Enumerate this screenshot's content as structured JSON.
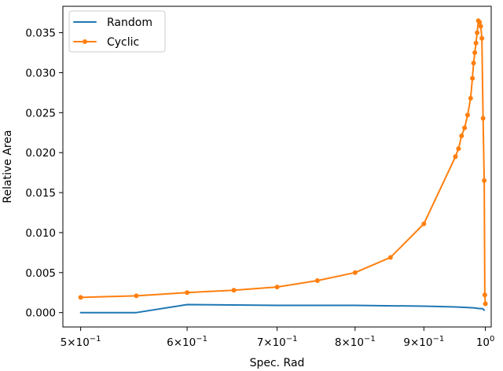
{
  "chart_data": {
    "type": "line",
    "title": "",
    "xlabel": "Spec. Rad",
    "ylabel": "Relative Area",
    "xscale": "log",
    "xlim": [
      0.485,
      1.01
    ],
    "ylim": [
      -0.0018,
      0.0383
    ],
    "grid": false,
    "legend_position": "top-left",
    "x_ticks": [
      {
        "value": 0.5,
        "base": "5×10",
        "exp": "−1"
      },
      {
        "value": 0.6,
        "base": "6×10",
        "exp": "−1"
      },
      {
        "value": 0.7,
        "base": "7×10",
        "exp": "−1"
      },
      {
        "value": 0.8,
        "base": "8×10",
        "exp": "−1"
      },
      {
        "value": 0.9,
        "base": "9×10",
        "exp": "−1"
      },
      {
        "value": 1.0,
        "base": "10",
        "exp": "0"
      }
    ],
    "y_ticks": [
      {
        "value": 0.0,
        "label": "0.000"
      },
      {
        "value": 0.005,
        "label": "0.005"
      },
      {
        "value": 0.01,
        "label": "0.010"
      },
      {
        "value": 0.015,
        "label": "0.015"
      },
      {
        "value": 0.02,
        "label": "0.020"
      },
      {
        "value": 0.025,
        "label": "0.025"
      },
      {
        "value": 0.03,
        "label": "0.030"
      },
      {
        "value": 0.035,
        "label": "0.035"
      }
    ],
    "series": [
      {
        "name": "Random",
        "color": "#1f77b4",
        "marker": false,
        "x": [
          0.5,
          0.55,
          0.6,
          0.7,
          0.8,
          0.9,
          0.95,
          0.98,
          0.99,
          0.995,
          0.998
        ],
        "y": [
          0.0,
          0.0,
          0.001,
          0.0009,
          0.0009,
          0.0008,
          0.0007,
          0.0006,
          0.0005,
          0.0005,
          0.0003
        ]
      },
      {
        "name": "Cyclic",
        "color": "#ff7f0e",
        "marker": true,
        "x": [
          0.5,
          0.55,
          0.6,
          0.65,
          0.7,
          0.75,
          0.8,
          0.85,
          0.9,
          0.95,
          0.955,
          0.96,
          0.965,
          0.97,
          0.975,
          0.978,
          0.98,
          0.982,
          0.984,
          0.986,
          0.988,
          0.99,
          0.992,
          0.994,
          0.996,
          0.998,
          0.999,
          1.0
        ],
        "y": [
          0.0019,
          0.0021,
          0.0025,
          0.0028,
          0.0032,
          0.004,
          0.005,
          0.0069,
          0.0111,
          0.0195,
          0.0205,
          0.0221,
          0.0231,
          0.0247,
          0.0268,
          0.0293,
          0.0312,
          0.0325,
          0.0337,
          0.035,
          0.0365,
          0.0363,
          0.0358,
          0.0343,
          0.0243,
          0.0165,
          0.0022,
          0.0011
        ]
      }
    ]
  }
}
